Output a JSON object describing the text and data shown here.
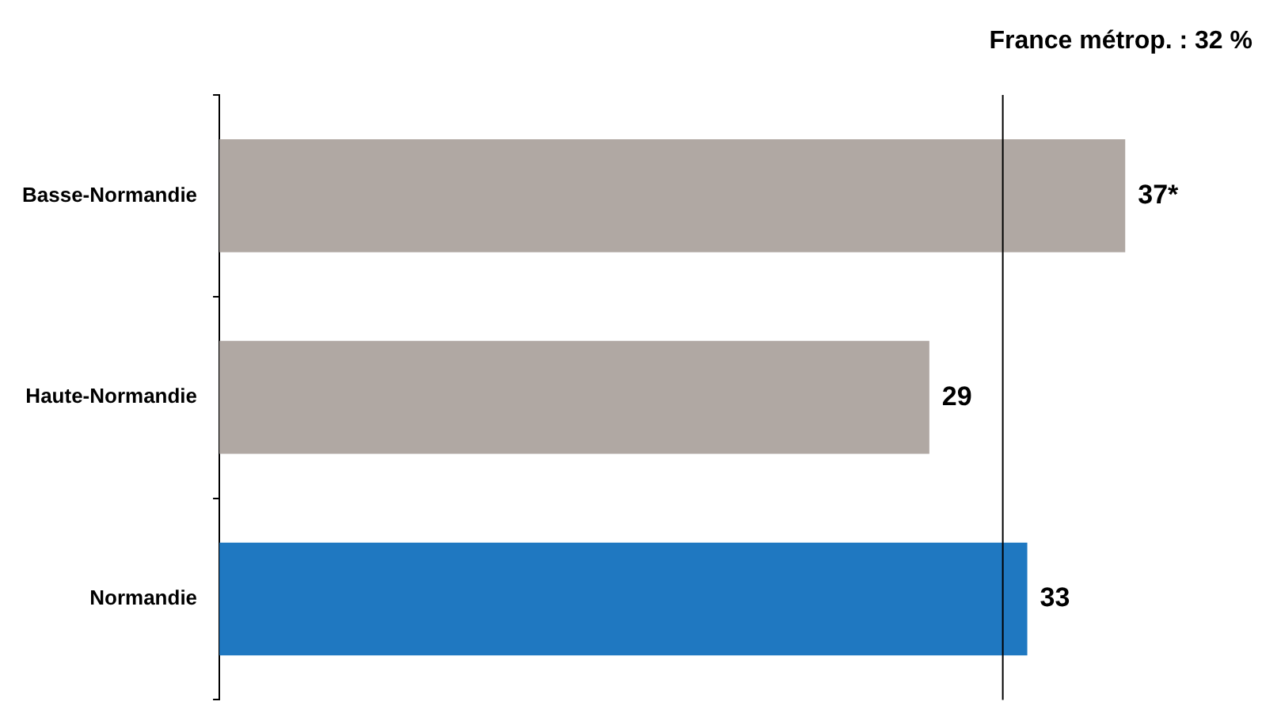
{
  "chart_data": {
    "type": "bar",
    "orientation": "horizontal",
    "categories": [
      "Basse-Normandie",
      "Haute-Normandie",
      "Normandie"
    ],
    "values": [
      37,
      29,
      33
    ],
    "colors": [
      "#b0a8a3",
      "#b0a8a3",
      "#1f78c1"
    ],
    "value_labels": [
      "37*",
      "29",
      "33"
    ],
    "ref_lines": [
      {
        "axis": "x",
        "value": 32,
        "label": "France métrop. : 32 %",
        "color": "#000000"
      }
    ],
    "grid": false,
    "legend": false
  }
}
